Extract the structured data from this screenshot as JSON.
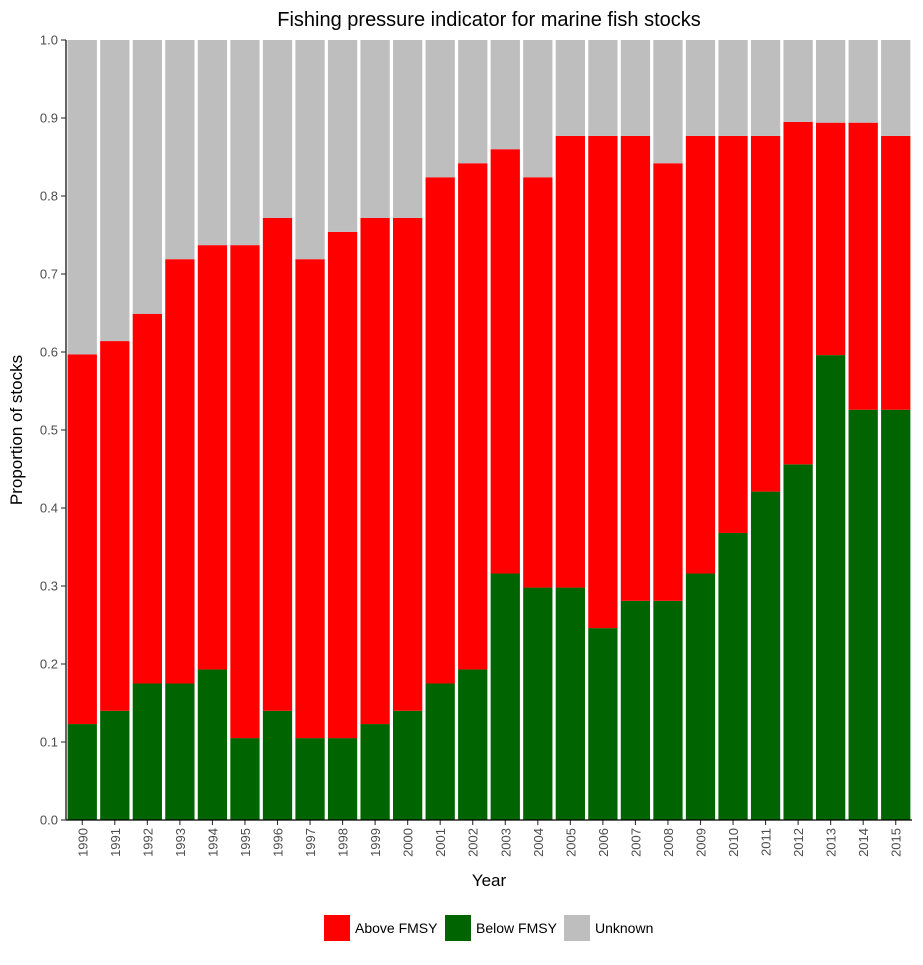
{
  "chart_data": {
    "type": "bar",
    "stacked": true,
    "title": "Fishing pressure indicator for marine fish stocks",
    "xlabel": "Year",
    "ylabel": "Proportion of stocks",
    "ylim": [
      0,
      1
    ],
    "yticks": [
      "0.0",
      "0.1",
      "0.2",
      "0.3",
      "0.4",
      "0.5",
      "0.6",
      "0.7",
      "0.8",
      "0.9",
      "1.0"
    ],
    "legend_position": "bottom",
    "categories": [
      "1990",
      "1991",
      "1992",
      "1993",
      "1994",
      "1995",
      "1996",
      "1997",
      "1998",
      "1999",
      "2000",
      "2001",
      "2002",
      "2003",
      "2004",
      "2005",
      "2006",
      "2007",
      "2008",
      "2009",
      "2010",
      "2011",
      "2012",
      "2013",
      "2014",
      "2015"
    ],
    "series": [
      {
        "name": "Below FMSY",
        "color": "#006400",
        "values": [
          0.123,
          0.14,
          0.175,
          0.175,
          0.193,
          0.105,
          0.14,
          0.105,
          0.105,
          0.123,
          0.14,
          0.175,
          0.193,
          0.316,
          0.298,
          0.298,
          0.246,
          0.281,
          0.281,
          0.316,
          0.368,
          0.421,
          0.456,
          0.596,
          0.526,
          0.526
        ]
      },
      {
        "name": "Above FMSY",
        "color": "#ff0000",
        "values": [
          0.474,
          0.474,
          0.474,
          0.544,
          0.544,
          0.632,
          0.632,
          0.614,
          0.649,
          0.649,
          0.632,
          0.649,
          0.649,
          0.544,
          0.526,
          0.579,
          0.631,
          0.596,
          0.561,
          0.561,
          0.509,
          0.456,
          0.439,
          0.298,
          0.368,
          0.351
        ]
      },
      {
        "name": "Unknown",
        "color": "#bebebe",
        "values": [
          0.403,
          0.386,
          0.351,
          0.281,
          0.263,
          0.263,
          0.228,
          0.281,
          0.246,
          0.228,
          0.228,
          0.176,
          0.158,
          0.14,
          0.176,
          0.123,
          0.123,
          0.123,
          0.158,
          0.123,
          0.123,
          0.123,
          0.105,
          0.106,
          0.106,
          0.123
        ]
      }
    ],
    "legend": [
      {
        "name": "Above FMSY",
        "color": "#ff0000"
      },
      {
        "name": "Below FMSY",
        "color": "#006400"
      },
      {
        "name": "Unknown",
        "color": "#bebebe"
      }
    ]
  }
}
